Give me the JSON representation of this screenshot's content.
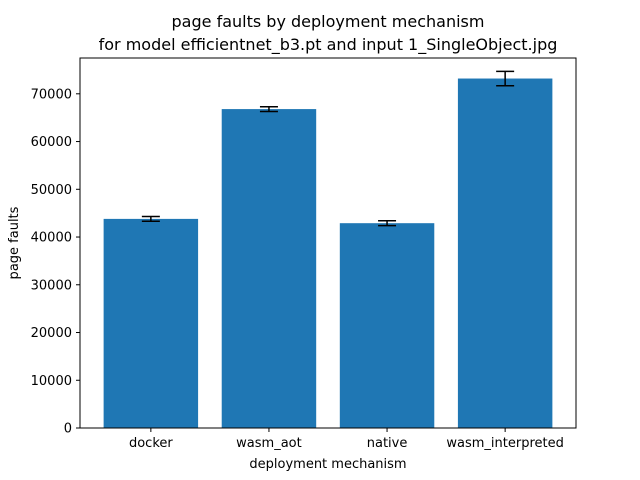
{
  "chart_data": {
    "type": "bar",
    "title": "page faults by deployment mechanism",
    "subtitle": "for model efficientnet_b3.pt and input 1_SingleObject.jpg",
    "xlabel": "deployment mechanism",
    "ylabel": "page faults",
    "categories": [
      "docker",
      "wasm_aot",
      "native",
      "wasm_interpreted"
    ],
    "values": [
      43800,
      66800,
      42900,
      73200
    ],
    "errors": [
      500,
      500,
      500,
      1500
    ],
    "ylim": [
      0,
      77500
    ],
    "yticks": [
      0,
      10000,
      20000,
      30000,
      40000,
      50000,
      60000,
      70000
    ],
    "ytick_labels": [
      "0",
      "10000",
      "20000",
      "30000",
      "40000",
      "50000",
      "60000",
      "70000"
    ],
    "bar_color": "#1f77b4",
    "error_color": "#000000",
    "grid": false,
    "legend": false
  }
}
